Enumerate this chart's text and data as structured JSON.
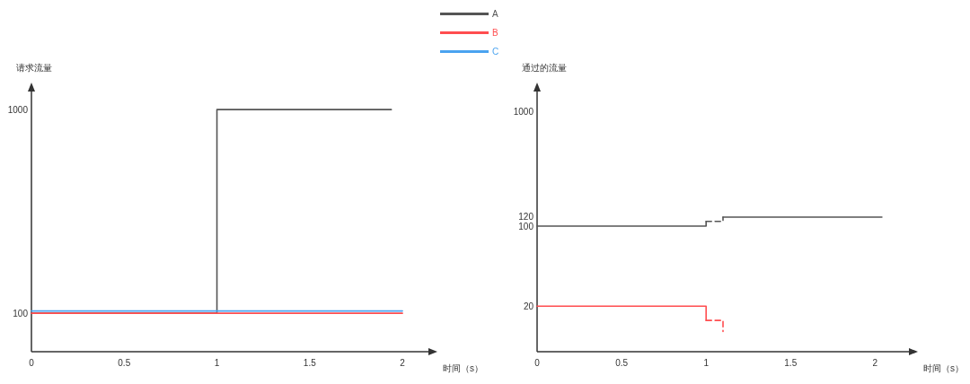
{
  "chart_data": [
    {
      "type": "step",
      "xlabel": "时间（s）",
      "ylabel": "请求流量",
      "legend": "top",
      "xlim": [
        0,
        2.14
      ],
      "ylim": [
        -70,
        1080
      ],
      "xticks": [
        0,
        0.5,
        1,
        1.5,
        2
      ],
      "yticks": [
        100,
        1000
      ],
      "series": [
        {
          "name": "A",
          "color": "#555555",
          "x": [
            0,
            1,
            1.94
          ],
          "values": [
            100,
            1000,
            1000
          ]
        },
        {
          "name": "B",
          "color": "#ff4d4f",
          "x": [
            0,
            2
          ],
          "values": [
            100,
            100
          ]
        },
        {
          "name": "C",
          "color": "#4aa3f0",
          "x": [
            0,
            2
          ],
          "values": [
            110,
            110
          ]
        }
      ]
    },
    {
      "type": "step",
      "xlabel": "时间（s）",
      "ylabel": "通过的流量",
      "log": "y",
      "xlim": [
        0,
        2.2
      ],
      "ylim": [
        8,
        1500
      ],
      "xticks": [
        0,
        0.5,
        1,
        1.5,
        2
      ],
      "yticks": [
        20,
        100,
        120,
        1000
      ],
      "series": [
        {
          "color": "#555555",
          "x": [
            0,
            1
          ],
          "values": [
            100,
            110
          ]
        },
        {
          "color": "#555555",
          "line_style": "dashed",
          "x": [
            1,
            1.1
          ],
          "values": [
            110,
            120
          ]
        },
        {
          "color": "#555555",
          "x": [
            1.1,
            2.04
          ],
          "values": [
            120,
            120
          ]
        },
        {
          "color": "#ff4d4f",
          "x": [
            0,
            1
          ],
          "values": [
            20,
            15
          ]
        },
        {
          "color": "#ff4d4f",
          "line_style": "dashed",
          "x": [
            1,
            1.1
          ],
          "values": [
            15,
            12
          ]
        }
      ]
    }
  ]
}
